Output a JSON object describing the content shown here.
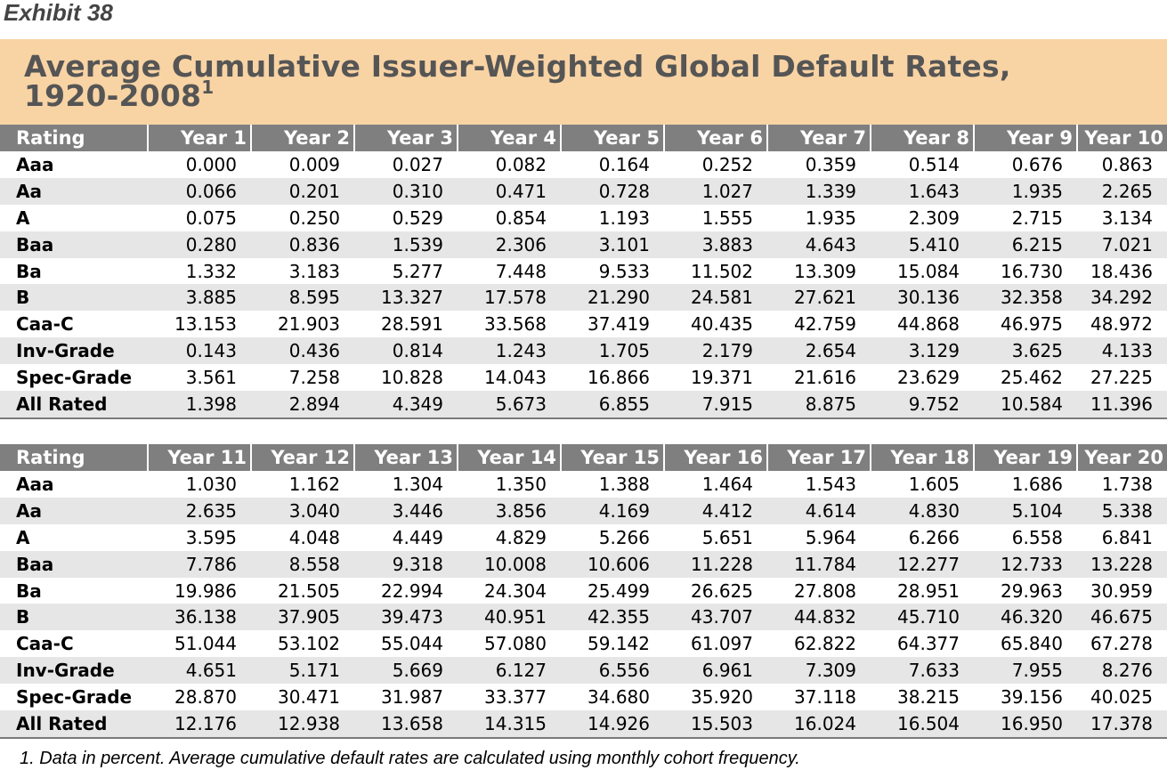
{
  "exhibit_label": "Exhibit 38",
  "title": {
    "line1": "Average Cumulative Issuer-Weighted Global Default Rates,",
    "line2": "1920-2008",
    "footnote_mark": "1"
  },
  "tables": [
    {
      "headers": [
        "Rating",
        "Year 1",
        "Year 2",
        "Year 3",
        "Year 4",
        "Year 5",
        "Year 6",
        "Year 7",
        "Year 8",
        "Year 9",
        "Year 10"
      ],
      "rows": [
        [
          "Aaa",
          "0.000",
          "0.009",
          "0.027",
          "0.082",
          "0.164",
          "0.252",
          "0.359",
          "0.514",
          "0.676",
          "0.863"
        ],
        [
          "Aa",
          "0.066",
          "0.201",
          "0.310",
          "0.471",
          "0.728",
          "1.027",
          "1.339",
          "1.643",
          "1.935",
          "2.265"
        ],
        [
          "A",
          "0.075",
          "0.250",
          "0.529",
          "0.854",
          "1.193",
          "1.555",
          "1.935",
          "2.309",
          "2.715",
          "3.134"
        ],
        [
          "Baa",
          "0.280",
          "0.836",
          "1.539",
          "2.306",
          "3.101",
          "3.883",
          "4.643",
          "5.410",
          "6.215",
          "7.021"
        ],
        [
          "Ba",
          "1.332",
          "3.183",
          "5.277",
          "7.448",
          "9.533",
          "11.502",
          "13.309",
          "15.084",
          "16.730",
          "18.436"
        ],
        [
          "B",
          "3.885",
          "8.595",
          "13.327",
          "17.578",
          "21.290",
          "24.581",
          "27.621",
          "30.136",
          "32.358",
          "34.292"
        ],
        [
          "Caa-C",
          "13.153",
          "21.903",
          "28.591",
          "33.568",
          "37.419",
          "40.435",
          "42.759",
          "44.868",
          "46.975",
          "48.972"
        ],
        [
          "Inv-Grade",
          "0.143",
          "0.436",
          "0.814",
          "1.243",
          "1.705",
          "2.179",
          "2.654",
          "3.129",
          "3.625",
          "4.133"
        ],
        [
          "Spec-Grade",
          "3.561",
          "7.258",
          "10.828",
          "14.043",
          "16.866",
          "19.371",
          "21.616",
          "23.629",
          "25.462",
          "27.225"
        ],
        [
          "All Rated",
          "1.398",
          "2.894",
          "4.349",
          "5.673",
          "6.855",
          "7.915",
          "8.875",
          "9.752",
          "10.584",
          "11.396"
        ]
      ]
    },
    {
      "headers": [
        "Rating",
        "Year 11",
        "Year 12",
        "Year 13",
        "Year 14",
        "Year 15",
        "Year 16",
        "Year 17",
        "Year 18",
        "Year 19",
        "Year 20"
      ],
      "rows": [
        [
          "Aaa",
          "1.030",
          "1.162",
          "1.304",
          "1.350",
          "1.388",
          "1.464",
          "1.543",
          "1.605",
          "1.686",
          "1.738"
        ],
        [
          "Aa",
          "2.635",
          "3.040",
          "3.446",
          "3.856",
          "4.169",
          "4.412",
          "4.614",
          "4.830",
          "5.104",
          "5.338"
        ],
        [
          "A",
          "3.595",
          "4.048",
          "4.449",
          "4.829",
          "5.266",
          "5.651",
          "5.964",
          "6.266",
          "6.558",
          "6.841"
        ],
        [
          "Baa",
          "7.786",
          "8.558",
          "9.318",
          "10.008",
          "10.606",
          "11.228",
          "11.784",
          "12.277",
          "12.733",
          "13.228"
        ],
        [
          "Ba",
          "19.986",
          "21.505",
          "22.994",
          "24.304",
          "25.499",
          "26.625",
          "27.808",
          "28.951",
          "29.963",
          "30.959"
        ],
        [
          "B",
          "36.138",
          "37.905",
          "39.473",
          "40.951",
          "42.355",
          "43.707",
          "44.832",
          "45.710",
          "46.320",
          "46.675"
        ],
        [
          "Caa-C",
          "51.044",
          "53.102",
          "55.044",
          "57.080",
          "59.142",
          "61.097",
          "62.822",
          "64.377",
          "65.840",
          "67.278"
        ],
        [
          "Inv-Grade",
          "4.651",
          "5.171",
          "5.669",
          "6.127",
          "6.556",
          "6.961",
          "7.309",
          "7.633",
          "7.955",
          "8.276"
        ],
        [
          "Spec-Grade",
          "28.870",
          "30.471",
          "31.987",
          "33.377",
          "34.680",
          "35.920",
          "37.118",
          "38.215",
          "39.156",
          "40.025"
        ],
        [
          "All Rated",
          "12.176",
          "12.938",
          "13.658",
          "14.315",
          "14.926",
          "15.503",
          "16.024",
          "16.504",
          "16.950",
          "17.378"
        ]
      ]
    }
  ],
  "footnote": "1. Data in percent. Average cumulative default rates are calculated using monthly cohort frequency.",
  "colors": {
    "title_band": "#f8d3a4",
    "title_text": "#555555",
    "header_bg": "#7f7f7f",
    "alt_row_bg": "#e6e6e6"
  }
}
